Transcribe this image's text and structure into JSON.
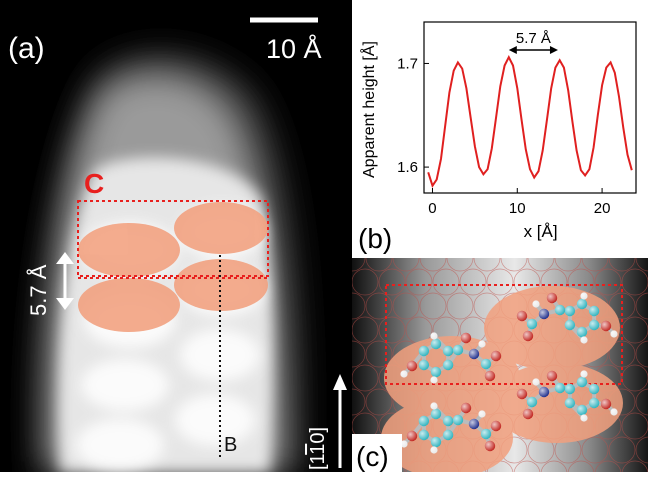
{
  "panel_a": {
    "label": "(a)",
    "scale_bar_label": "10 Å",
    "box_label": "C",
    "spacing_label": "5.7 Å",
    "line_label": "B",
    "direction_label": "[1",
    "direction_label_bar": "1",
    "direction_label_end": "0]",
    "colors": {
      "box": "#e8201e",
      "molecule": "#f2a07e"
    }
  },
  "panel_b": {
    "label": "(b)",
    "annotation": "5.7 Å",
    "chart_data": {
      "type": "line",
      "xlabel": "x [Å]",
      "ylabel": "Apparent height [Å]",
      "xlim": [
        -1,
        24
      ],
      "ylim": [
        1.575,
        1.74
      ],
      "xticks": [
        0,
        10,
        20
      ],
      "yticks": [
        1.6,
        1.7
      ],
      "grid": false,
      "series": [
        {
          "color": "#e02020",
          "x": [
            -0.5,
            0,
            0.5,
            1,
            1.5,
            2,
            2.5,
            3,
            3.5,
            4,
            4.5,
            5,
            5.5,
            6,
            6.5,
            7,
            7.5,
            8,
            8.5,
            9,
            9.5,
            10,
            10.5,
            11,
            11.5,
            12,
            12.5,
            13,
            13.5,
            14,
            14.5,
            15,
            15.5,
            16,
            16.5,
            17,
            17.5,
            18,
            18.5,
            19,
            19.5,
            20,
            20.5,
            21,
            21.5,
            22,
            22.5,
            23,
            23.5
          ],
          "y": [
            1.595,
            1.582,
            1.588,
            1.608,
            1.64,
            1.672,
            1.693,
            1.701,
            1.695,
            1.676,
            1.648,
            1.62,
            1.6,
            1.593,
            1.598,
            1.618,
            1.648,
            1.678,
            1.698,
            1.706,
            1.698,
            1.676,
            1.646,
            1.617,
            1.598,
            1.59,
            1.596,
            1.616,
            1.646,
            1.676,
            1.696,
            1.703,
            1.696,
            1.674,
            1.644,
            1.616,
            1.597,
            1.592,
            1.598,
            1.619,
            1.65,
            1.679,
            1.696,
            1.701,
            1.691,
            1.668,
            1.638,
            1.612,
            1.597
          ]
        }
      ]
    }
  },
  "panel_c": {
    "label": "(c)",
    "colors": {
      "carbon": "#2bb2be",
      "oxygen": "#c0201a",
      "nitrogen": "#1a2a8a",
      "hydrogen": "#e8e8e8",
      "substrate": "#c0504a"
    }
  }
}
